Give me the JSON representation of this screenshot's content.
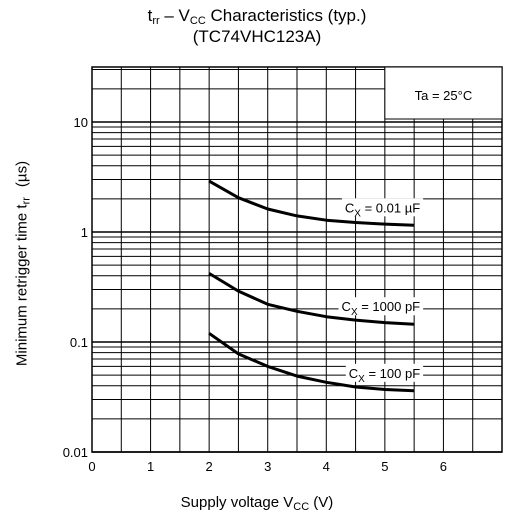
{
  "chart_data": {
    "type": "line",
    "title_line1_main": "t",
    "title_line1_sub1": "rr",
    "title_line1_mid": " – V",
    "title_line1_sub2": "CC",
    "title_line1_rest": " Characteristics (typ.)",
    "title_line2": "(TC74VHC123A)",
    "xlabel_main": "Supply voltage   V",
    "xlabel_sub": "CC",
    "xlabel_unit": "   (V)",
    "ylabel_main": "Minimum retrigger time   t",
    "ylabel_sub": "rr",
    "ylabel_unit": "(µs)",
    "xlim": [
      0,
      7
    ],
    "ylim": [
      0.01,
      50
    ],
    "yscale": "log",
    "x_ticks": [
      "0",
      "1",
      "2",
      "3",
      "4",
      "5",
      "6"
    ],
    "y_ticks": [
      "0.01",
      "0.1",
      "1",
      "10"
    ],
    "condition_label": "Ta = 25°C",
    "grid": true,
    "series": [
      {
        "name": "CX = 0.01 µF",
        "label_main": "C",
        "label_sub": "X",
        "label_rest": " = 0.01 µF",
        "x": [
          2.0,
          2.5,
          3.0,
          3.5,
          4.0,
          4.5,
          5.0,
          5.5
        ],
        "y": [
          2.9,
          2.05,
          1.62,
          1.4,
          1.28,
          1.22,
          1.18,
          1.15
        ]
      },
      {
        "name": "CX = 1000 pF",
        "label_main": "C",
        "label_sub": "X",
        "label_rest": " = 1000 pF",
        "x": [
          2.0,
          2.5,
          3.0,
          3.5,
          4.0,
          4.5,
          5.0,
          5.5
        ],
        "y": [
          0.42,
          0.29,
          0.22,
          0.19,
          0.17,
          0.158,
          0.15,
          0.145
        ]
      },
      {
        "name": "CX = 100 pF",
        "label_main": "C",
        "label_sub": "X",
        "label_rest": " = 100 pF",
        "x": [
          2.0,
          2.5,
          3.0,
          3.5,
          4.0,
          4.5,
          5.0,
          5.5
        ],
        "y": [
          0.12,
          0.078,
          0.06,
          0.049,
          0.043,
          0.039,
          0.037,
          0.036
        ]
      }
    ]
  }
}
